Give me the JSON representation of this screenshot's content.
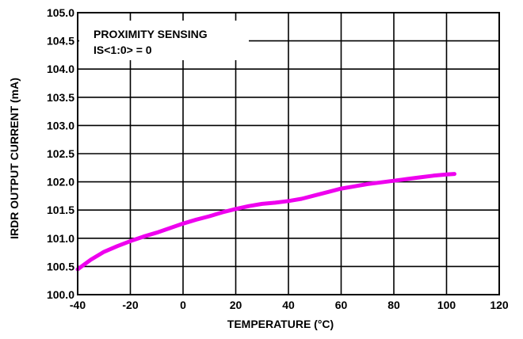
{
  "chart_data": {
    "type": "line",
    "title": "",
    "xlabel": "TEMPERATURE (°C)",
    "ylabel": "IRDR OUTPUT CURRENT (mA)",
    "xlim": [
      -40,
      120
    ],
    "ylim": [
      100.0,
      105.0
    ],
    "x_ticks": [
      -40,
      -20,
      0,
      20,
      40,
      60,
      80,
      100,
      120
    ],
    "x_tick_labels": [
      "-40",
      "-20",
      "0",
      "20",
      "40",
      "60",
      "80",
      "100",
      "120"
    ],
    "y_ticks": [
      100.0,
      100.5,
      101.0,
      101.5,
      102.0,
      102.5,
      103.0,
      103.5,
      104.0,
      104.5,
      105.0
    ],
    "y_tick_labels": [
      "100.0",
      "100.5",
      "101.0",
      "101.5",
      "102.0",
      "102.5",
      "103.0",
      "103.5",
      "104.0",
      "104.5",
      "105.0"
    ],
    "grid": true,
    "annotation": {
      "line1": "PROXIMITY SENSING",
      "line2": "IS<1:0> = 0"
    },
    "series": [
      {
        "color": "#ee00ee",
        "x": [
          -40,
          -35,
          -30,
          -25,
          -20,
          -15,
          -10,
          -5,
          0,
          5,
          10,
          15,
          20,
          25,
          30,
          35,
          40,
          45,
          50,
          55,
          60,
          65,
          70,
          75,
          80,
          85,
          90,
          95,
          100,
          103
        ],
        "y": [
          100.45,
          100.62,
          100.76,
          100.86,
          100.95,
          101.03,
          101.1,
          101.18,
          101.26,
          101.33,
          101.39,
          101.46,
          101.52,
          101.57,
          101.61,
          101.63,
          101.66,
          101.7,
          101.76,
          101.82,
          101.88,
          101.92,
          101.96,
          101.99,
          102.02,
          102.05,
          102.08,
          102.11,
          102.13,
          102.14
        ]
      }
    ]
  }
}
